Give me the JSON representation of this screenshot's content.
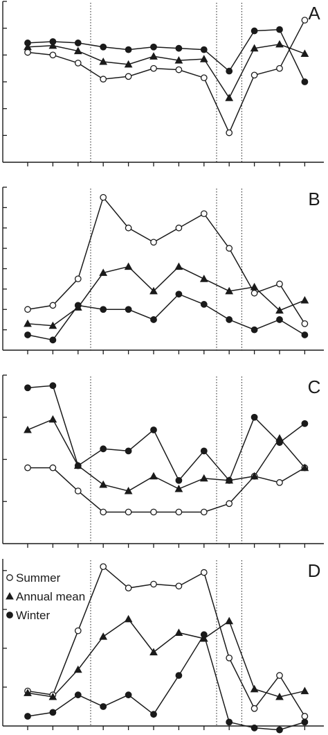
{
  "chart_data": [
    {
      "type": "line",
      "panel": "A",
      "x": [
        1,
        2,
        3,
        4,
        5,
        6,
        7,
        8,
        9,
        10,
        11,
        12
      ],
      "ylim": [
        0,
        6
      ],
      "yticks": [
        1,
        2,
        3,
        4,
        5,
        6
      ],
      "vlines": [
        3.5,
        8.5,
        9.5
      ],
      "series": [
        {
          "name": "Summer",
          "marker": "circle-open",
          "values": [
            4.1,
            4.0,
            3.7,
            3.1,
            3.2,
            3.5,
            3.45,
            3.15,
            1.1,
            3.25,
            3.5,
            5.3
          ]
        },
        {
          "name": "Annual mean",
          "marker": "triangle",
          "values": [
            4.3,
            4.35,
            4.15,
            3.75,
            3.65,
            3.95,
            3.8,
            3.85,
            2.4,
            4.25,
            4.4,
            4.05
          ]
        },
        {
          "name": "Winter",
          "marker": "circle-filled",
          "values": [
            4.45,
            4.5,
            4.45,
            4.3,
            4.2,
            4.3,
            4.25,
            4.2,
            3.4,
            4.9,
            4.95,
            3.0
          ]
        }
      ]
    },
    {
      "type": "line",
      "panel": "B",
      "x": [
        1,
        2,
        3,
        4,
        5,
        6,
        7,
        8,
        9,
        10,
        11,
        12
      ],
      "ylim": [
        0,
        8
      ],
      "yticks": [
        1,
        2,
        3,
        4,
        5,
        6,
        7,
        8
      ],
      "vlines": [
        3.5,
        8.5,
        9.5
      ],
      "series": [
        {
          "name": "Summer",
          "marker": "circle-open",
          "values": [
            2.0,
            2.2,
            3.5,
            7.5,
            6.0,
            5.3,
            6.0,
            6.7,
            5.0,
            2.8,
            3.25,
            1.3
          ]
        },
        {
          "name": "Annual mean",
          "marker": "triangle",
          "values": [
            1.3,
            1.2,
            2.1,
            3.8,
            4.1,
            2.9,
            4.1,
            3.5,
            2.9,
            3.1,
            1.95,
            2.45
          ]
        },
        {
          "name": "Winter",
          "marker": "circle-filled",
          "values": [
            0.75,
            0.5,
            2.2,
            2.0,
            2.0,
            1.5,
            2.75,
            2.25,
            1.5,
            1.0,
            1.5,
            0.75
          ]
        }
      ]
    },
    {
      "type": "line",
      "panel": "C",
      "x": [
        1,
        2,
        3,
        4,
        5,
        6,
        7,
        8,
        9,
        10,
        11,
        12
      ],
      "ylim": [
        0,
        4
      ],
      "yticks": [
        1,
        2,
        3,
        4
      ],
      "vlines": [
        3.5,
        8.5,
        9.5
      ],
      "series": [
        {
          "name": "Summer",
          "marker": "circle-open",
          "values": [
            1.8,
            1.8,
            1.25,
            0.75,
            0.75,
            0.75,
            0.75,
            0.75,
            0.95,
            1.6,
            1.45,
            1.8
          ]
        },
        {
          "name": "Annual mean",
          "marker": "triangle",
          "values": [
            2.7,
            2.95,
            1.85,
            1.4,
            1.25,
            1.6,
            1.3,
            1.55,
            1.5,
            1.6,
            2.5,
            1.8
          ]
        },
        {
          "name": "Winter",
          "marker": "circle-filled",
          "values": [
            3.7,
            3.75,
            1.85,
            2.25,
            2.2,
            2.7,
            1.5,
            2.2,
            1.5,
            3.0,
            2.4,
            2.85
          ]
        }
      ]
    },
    {
      "type": "line",
      "panel": "D",
      "x": [
        1,
        2,
        3,
        4,
        5,
        6,
        7,
        8,
        9,
        10,
        11,
        12
      ],
      "ylim": [
        0,
        4.3
      ],
      "yticks": [
        1,
        2,
        3,
        4,
        5
      ],
      "vlines": [
        3.5,
        8.5,
        9.5
      ],
      "legend": {
        "position": "top-left",
        "entries": [
          "Summer",
          "Annual mean",
          "Winter"
        ]
      },
      "series": [
        {
          "name": "Summer",
          "marker": "circle-open",
          "values": [
            0.9,
            0.8,
            2.45,
            4.1,
            3.55,
            3.65,
            3.6,
            3.95,
            1.75,
            0.45,
            1.3,
            0.25
          ]
        },
        {
          "name": "Annual mean",
          "marker": "triangle",
          "values": [
            0.85,
            0.75,
            1.45,
            2.3,
            2.75,
            1.9,
            2.4,
            2.25,
            2.7,
            0.95,
            0.75,
            0.9
          ]
        },
        {
          "name": "Winter",
          "marker": "circle-filled",
          "values": [
            0.25,
            0.35,
            0.8,
            0.5,
            0.8,
            0.3,
            1.3,
            2.35,
            0.1,
            -0.05,
            -0.1,
            0.1
          ]
        }
      ]
    }
  ]
}
